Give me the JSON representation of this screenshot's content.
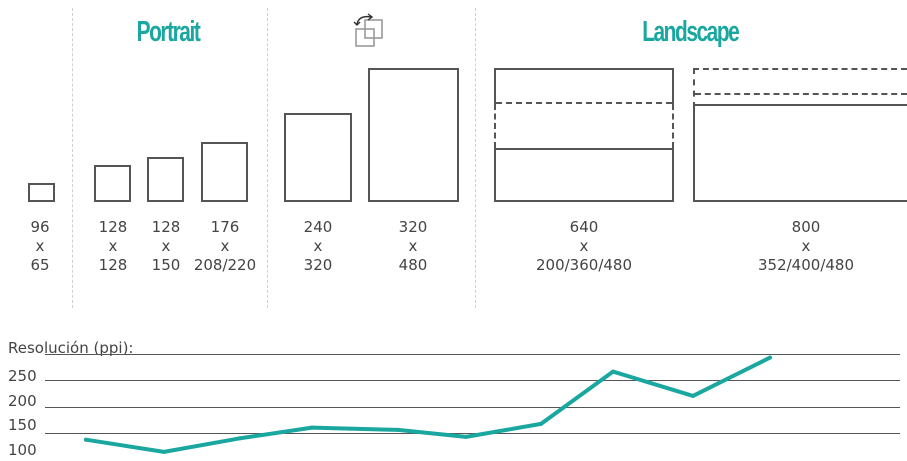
{
  "headings": {
    "portrait": "Portrait",
    "landscape": "Landscape",
    "rotate_icon": "rotate-icon"
  },
  "sizes": [
    {
      "w": "96",
      "x": "x",
      "h": "65"
    },
    {
      "w": "128",
      "x": "x",
      "h": "128"
    },
    {
      "w": "128",
      "x": "x",
      "h": "150"
    },
    {
      "w": "176",
      "x": "x",
      "h": "208/220"
    },
    {
      "w": "240",
      "x": "x",
      "h": "320"
    },
    {
      "w": "320",
      "x": "x",
      "h": "480"
    },
    {
      "w": "640",
      "x": "x",
      "h": "200/360/480"
    },
    {
      "w": "800",
      "x": "x",
      "h": "352/400/480"
    }
  ],
  "resolution": {
    "label": "Resolución (ppi):",
    "ticks": [
      "250",
      "200",
      "150",
      "100"
    ]
  },
  "chart_data": {
    "type": "line",
    "ylabel": "Resolución (ppi):",
    "yticks": [
      100,
      150,
      200,
      250
    ],
    "x": [
      1,
      2,
      3,
      4,
      5,
      6,
      7,
      8,
      9,
      10
    ],
    "values": [
      122,
      96,
      125,
      148,
      143,
      128,
      156,
      268,
      216,
      298
    ]
  },
  "colors": {
    "accent": "#1aa7a0",
    "outline": "#555555",
    "text": "#444444"
  }
}
